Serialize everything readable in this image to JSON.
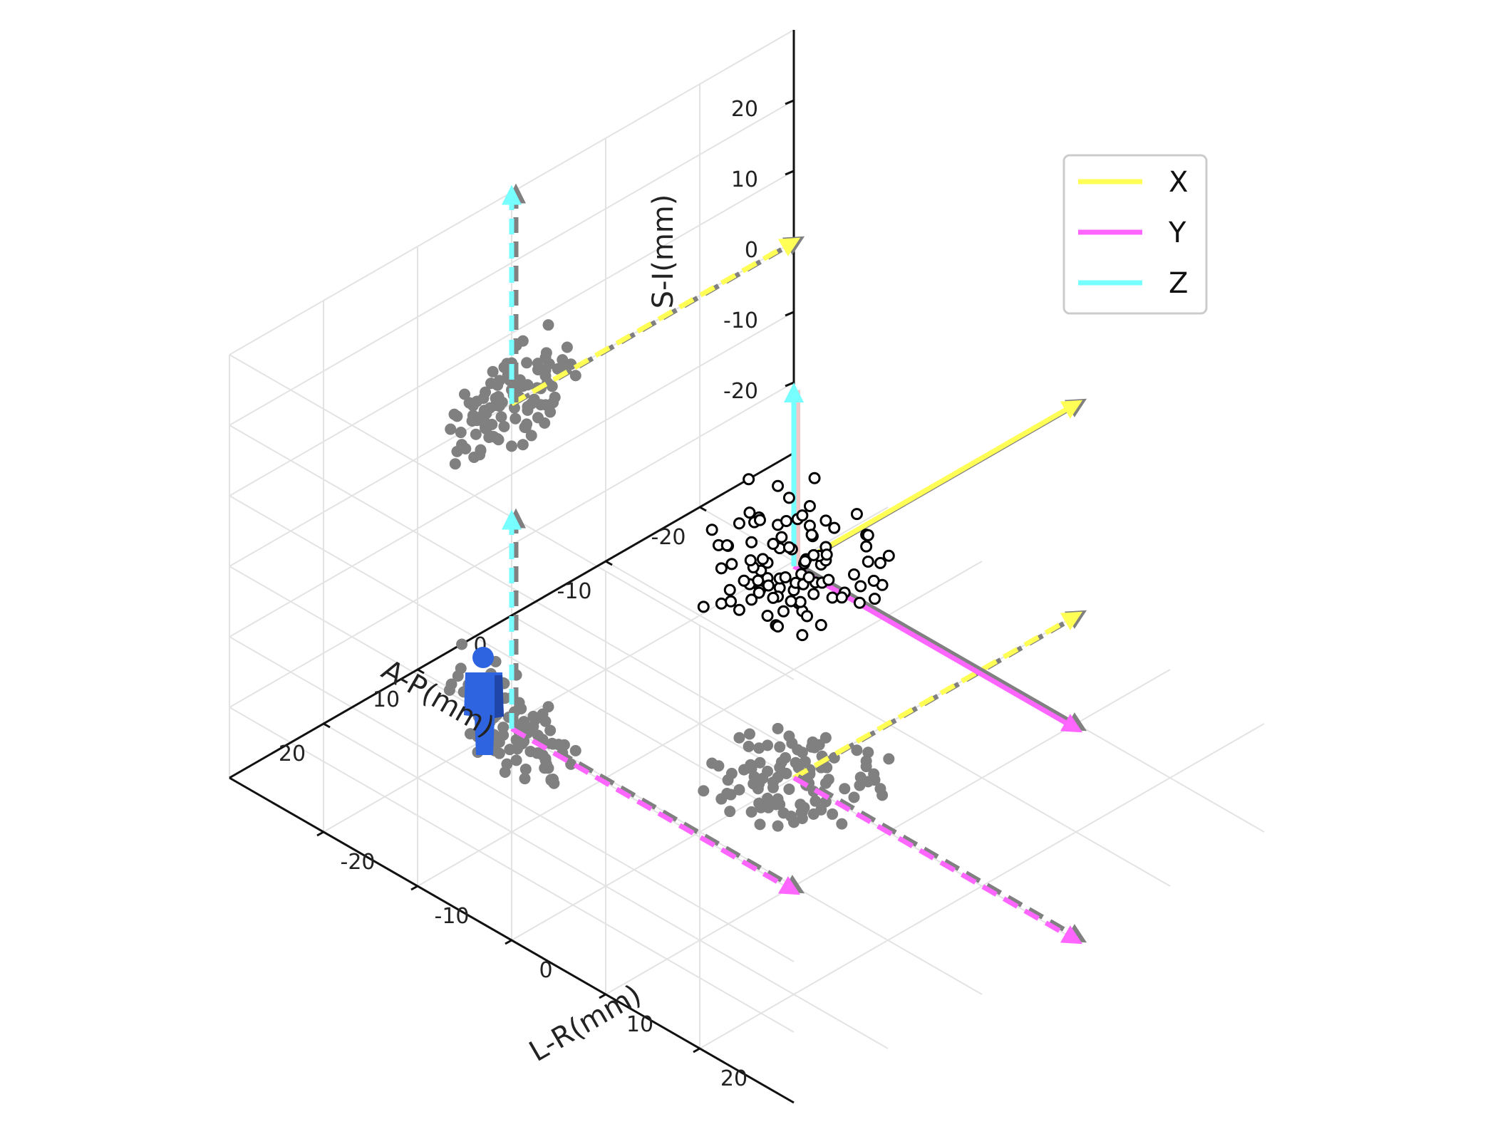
{
  "chart_data": {
    "type": "scatter",
    "projection": "3d",
    "axes": {
      "x": {
        "label": "A-P(mm)",
        "ticks": [
          -20,
          -10,
          0,
          10,
          20
        ]
      },
      "y": {
        "label": "L-R(mm)",
        "ticks": [
          -20,
          -10,
          0,
          10,
          20
        ]
      },
      "z": {
        "label": "S-I(mm)",
        "ticks": [
          -20,
          -10,
          0,
          10,
          20
        ]
      }
    },
    "xlim": [
      -30,
      30
    ],
    "ylim": [
      -30,
      30
    ],
    "zlim": [
      -30,
      30
    ],
    "grid": true,
    "legend": {
      "placement": "top-right",
      "entries": [
        {
          "label": "X",
          "color": "#ffff55"
        },
        {
          "label": "Y",
          "color": "#ff66ff"
        },
        {
          "label": "Z",
          "color": "#77ffff"
        }
      ]
    },
    "colors": {
      "points_3d": "#000000",
      "projections": "#808080",
      "figure_icon": "#2f64e0"
    },
    "figure_icon": "person-standing-icon",
    "coordinate_frame": {
      "origin": [
        0,
        0,
        0
      ],
      "vectors": [
        {
          "label": "X",
          "end": [
            -30,
            0,
            0
          ]
        },
        {
          "label": "Y",
          "end": [
            0,
            30,
            0
          ]
        },
        {
          "label": "Z",
          "end": [
            0,
            0,
            25
          ]
        }
      ]
    },
    "points": [
      [
        -3.6,
        4.3,
        1.2
      ],
      [
        3.2,
        1.7,
        0.7
      ],
      [
        -0.5,
        -5.3,
        7.9
      ],
      [
        3.4,
        1.5,
        -4.6
      ],
      [
        -1.4,
        5.0,
        1.6
      ],
      [
        -3.9,
        -1.7,
        8.2
      ],
      [
        0.0,
        1.3,
        2.0
      ],
      [
        4.5,
        1.0,
        3.6
      ],
      [
        -2.8,
        4.2,
        -4.1
      ],
      [
        -0.2,
        -1.7,
        1.1
      ],
      [
        2.2,
        3.3,
        4.6
      ],
      [
        -4.3,
        -2.3,
        -0.8
      ],
      [
        -1.2,
        -0.7,
        -6.7
      ],
      [
        5.4,
        0.9,
        0.1
      ],
      [
        -2.1,
        -3.6,
        -6.1
      ],
      [
        1.5,
        4.4,
        -3.8
      ],
      [
        5.8,
        -1.9,
        2.7
      ],
      [
        2.9,
        -5.1,
        1.3
      ],
      [
        0.5,
        3.9,
        6.1
      ],
      [
        -3.1,
        6.3,
        -0.2
      ],
      [
        -3.6,
        -4.1,
        3.8
      ],
      [
        2.8,
        1.1,
        -1.3
      ],
      [
        -2.1,
        -0.9,
        -1.6
      ],
      [
        1.0,
        3.3,
        1.0
      ],
      [
        -5.4,
        2.3,
        2.1
      ],
      [
        4.2,
        0.5,
        0.8
      ],
      [
        -2.8,
        -2.4,
        2.7
      ],
      [
        -1.6,
        0.1,
        4.6
      ],
      [
        5.3,
        3.6,
        -1.7
      ],
      [
        4.1,
        4.1,
        2.9
      ],
      [
        3.7,
        -3.3,
        3.2
      ],
      [
        0.8,
        -2.0,
        -2.6
      ],
      [
        3.0,
        -5.7,
        3.1
      ],
      [
        2.0,
        -0.2,
        -3.1
      ],
      [
        3.3,
        0.5,
        -4.1
      ],
      [
        -0.9,
        -4.6,
        2.7
      ],
      [
        1.4,
        -3.1,
        2.1
      ],
      [
        2.0,
        -2.2,
        6.1
      ],
      [
        -2.4,
        0.5,
        -1.2
      ],
      [
        0.8,
        -0.9,
        5.8
      ],
      [
        -6.8,
        3.3,
        -1.2
      ],
      [
        -3.5,
        -0.5,
        -5.4
      ],
      [
        0.0,
        -0.8,
        5.8
      ],
      [
        -1.5,
        -1.3,
        -4.5
      ],
      [
        -3.6,
        3.5,
        -2.9
      ],
      [
        2.8,
        3.6,
        3.8
      ],
      [
        -5.4,
        -2.0,
        0.8
      ],
      [
        -0.4,
        0.6,
        -2.4
      ],
      [
        6.5,
        -0.3,
        1.4
      ],
      [
        -4.9,
        2.8,
        1.2
      ],
      [
        2.7,
        -1.6,
        0.7
      ],
      [
        2.7,
        3.6,
        -1.5
      ],
      [
        -1.6,
        -4.4,
        -4.1
      ],
      [
        -1.7,
        2.0,
        -1.7
      ],
      [
        -0.3,
        1.3,
        -0.8
      ],
      [
        -3.1,
        -3.3,
        -2.5
      ],
      [
        -1.7,
        -6.4,
        1.4
      ],
      [
        6.0,
        -3.6,
        -3.9
      ],
      [
        5.8,
        -1.9,
        -2.3
      ],
      [
        1.4,
        -3.3,
        -4.0
      ],
      [
        4.9,
        -1.8,
        -2.6
      ],
      [
        1.3,
        5.4,
        0.7
      ],
      [
        2.9,
        -3.7,
        -0.3
      ],
      [
        -6.3,
        1.6,
        0.8
      ],
      [
        -2.8,
        -1.9,
        3.6
      ],
      [
        -1.2,
        2.2,
        1.6
      ],
      [
        -1.7,
        3.7,
        -2.2
      ],
      [
        -0.8,
        -6.6,
        0.4
      ],
      [
        2.1,
        2.8,
        -1.3
      ],
      [
        1.5,
        -0.7,
        3.8
      ],
      [
        6.1,
        2.5,
        3.2
      ],
      [
        4.1,
        1.4,
        1.5
      ],
      [
        -4.4,
        -1.7,
        -3.2
      ],
      [
        -0.8,
        -2.1,
        1.9
      ],
      [
        -2.7,
        0.8,
        0.2
      ],
      [
        3.8,
        2.7,
        -1.4
      ],
      [
        5.0,
        -2.1,
        5.2
      ],
      [
        0.0,
        1.4,
        -6.0
      ],
      [
        1.9,
        -3.4,
        -3.2
      ],
      [
        -4.1,
        4.5,
        -4.3
      ],
      [
        1.7,
        6.8,
        2.1
      ],
      [
        -3.6,
        5.6,
        2.0
      ],
      [
        0.4,
        -3.2,
        4.4
      ],
      [
        0.2,
        2.3,
        3.5
      ],
      [
        3.7,
        3.4,
        0.5
      ],
      [
        -5.9,
        0.8,
        3.5
      ],
      [
        -4.0,
        0.3,
        2.6
      ],
      [
        1.1,
        -3.5,
        -1.0
      ],
      [
        3.3,
        4.2,
        -4.0
      ],
      [
        -1.2,
        0.5,
        8.0
      ],
      [
        2.3,
        4.4,
        1.2
      ],
      [
        2.4,
        -1.3,
        -2.9
      ],
      [
        4.0,
        -1.8,
        -4.5
      ],
      [
        -3.8,
        -1.9,
        0.1
      ],
      [
        -3.7,
        -5.4,
        4.4
      ],
      [
        1.7,
        -1.6,
        1.1
      ],
      [
        1.3,
        0.8,
        4.3
      ],
      [
        -4.6,
        3.9,
        -2.6
      ],
      [
        2.9,
        -0.9,
        -0.5
      ],
      [
        -1.4,
        -2.3,
        -4.4
      ]
    ]
  }
}
